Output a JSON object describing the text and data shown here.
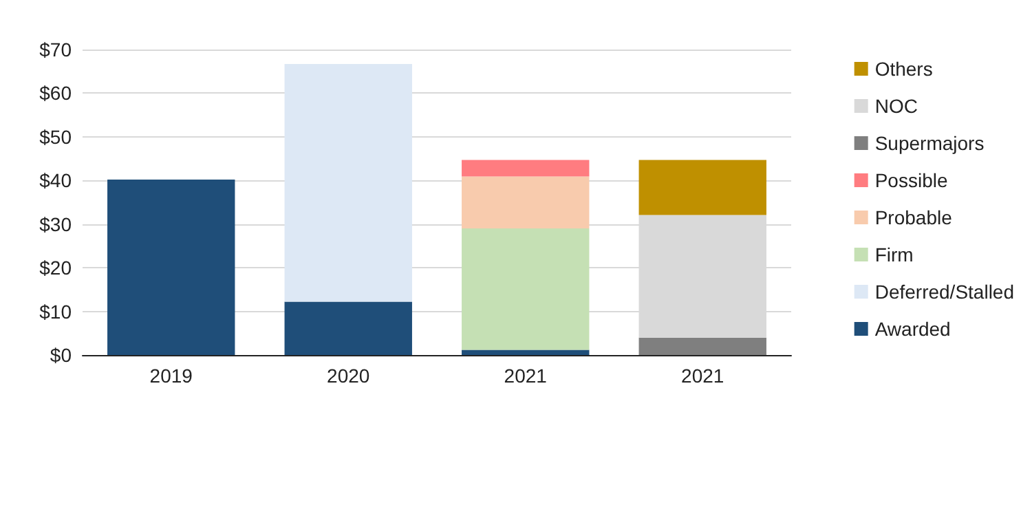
{
  "chart_data": {
    "type": "bar",
    "stacked": true,
    "categories": [
      "2019",
      "2020",
      "2021",
      "2021"
    ],
    "series": [
      {
        "name": "Awarded",
        "color": "#1f4e79",
        "values": [
          40.2,
          12.2,
          1.2,
          null
        ]
      },
      {
        "name": "Deferred/Stalled",
        "color": "#dde8f5",
        "values": [
          null,
          54.5,
          null,
          null
        ]
      },
      {
        "name": "Firm",
        "color": "#c5e0b4",
        "values": [
          null,
          null,
          27.8,
          null
        ]
      },
      {
        "name": "Probable",
        "color": "#f8cbad",
        "values": [
          null,
          null,
          11.9,
          null
        ]
      },
      {
        "name": "Possible",
        "color": "#ff7c80",
        "values": [
          null,
          null,
          3.8,
          null
        ]
      },
      {
        "name": "Supermajors",
        "color": "#7f7f7f",
        "values": [
          null,
          null,
          null,
          4.0
        ]
      },
      {
        "name": "NOC",
        "color": "#d9d9d9",
        "values": [
          null,
          null,
          null,
          28.1
        ]
      },
      {
        "name": "Others",
        "color": "#bf9000",
        "values": [
          null,
          null,
          null,
          12.6
        ]
      }
    ],
    "ylim": [
      0,
      70
    ],
    "yticks": [
      {
        "value": 0,
        "label": "$0"
      },
      {
        "value": 10,
        "label": "$10"
      },
      {
        "value": 20,
        "label": "$20"
      },
      {
        "value": 30,
        "label": "$30"
      },
      {
        "value": 40,
        "label": "$40"
      },
      {
        "value": 50,
        "label": "$50"
      },
      {
        "value": 60,
        "label": "$60"
      },
      {
        "value": 70,
        "label": "$70"
      }
    ],
    "grid": "y",
    "legend": "right"
  }
}
